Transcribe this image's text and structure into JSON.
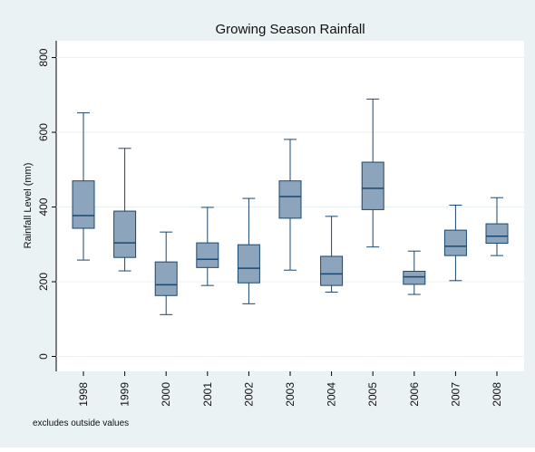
{
  "chart_data": {
    "type": "box",
    "title": "Growing Season Rainfall",
    "y_label": "Rainfall Level (mm)",
    "note": "excludes outside values",
    "categories": [
      "1998",
      "1999",
      "2000",
      "2001",
      "2002",
      "2003",
      "2004",
      "2005",
      "2006",
      "2007",
      "2008"
    ],
    "whisker_high": [
      652,
      557,
      333,
      399,
      423,
      581,
      375,
      689,
      282,
      405,
      425
    ],
    "q3": [
      470,
      389,
      253,
      304,
      299,
      470,
      268,
      520,
      228,
      338,
      355
    ],
    "median": [
      377,
      304,
      192,
      260,
      236,
      428,
      221,
      450,
      213,
      295,
      322
    ],
    "q1": [
      343,
      265,
      163,
      238,
      197,
      370,
      190,
      393,
      193,
      270,
      303
    ],
    "whisker_low": [
      258,
      229,
      112,
      190,
      141,
      231,
      172,
      293,
      166,
      203,
      270
    ],
    "color": "#8da4bd",
    "line_color": "#1a476f",
    "ylim": [
      -40,
      845
    ],
    "yticks": [
      0,
      200,
      400,
      600,
      800
    ],
    "grid": true
  }
}
